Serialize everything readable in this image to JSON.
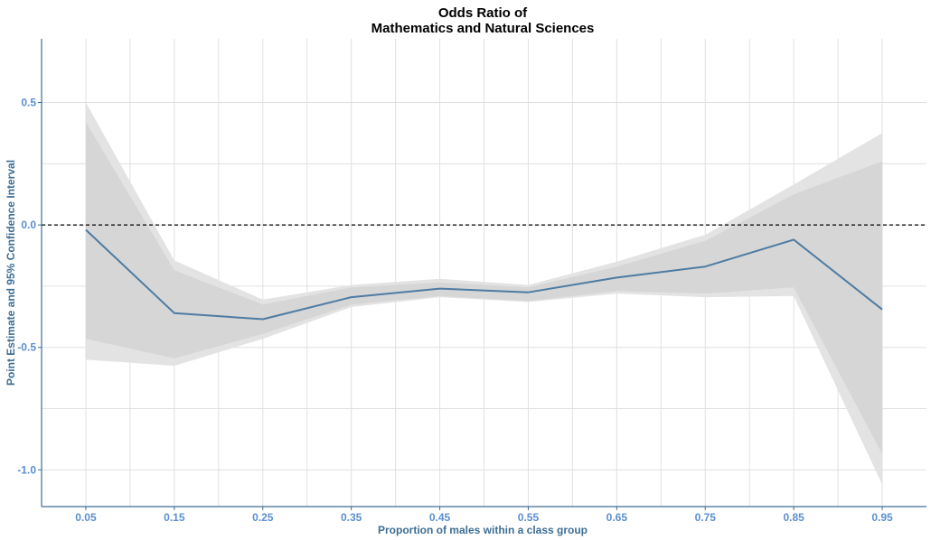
{
  "chart_data": {
    "type": "line",
    "title": [
      "Odds Ratio of",
      "Mathematics and Natural Sciences"
    ],
    "xlabel": "Proportion of males within a class group",
    "ylabel": "Point Estimate and 95% Confidence Interval",
    "xlim": [
      0.0,
      1.0
    ],
    "ylim": [
      -1.15,
      0.76
    ],
    "x_ticks": [
      0.05,
      0.15,
      0.25,
      0.35,
      0.45,
      0.55,
      0.65,
      0.75,
      0.85,
      0.95
    ],
    "x_tick_labels": [
      "0.05",
      "0.15",
      "0.25",
      "0.35",
      "0.45",
      "0.55",
      "0.65",
      "0.75",
      "0.85",
      "0.95"
    ],
    "y_ticks": [
      0.5,
      0.0,
      -0.5,
      -1.0
    ],
    "y_tick_labels": [
      "0.5",
      "0.0",
      "-0.5",
      "-1.0"
    ],
    "grid": true,
    "reference_line": {
      "y": 0.0,
      "style": "dashed",
      "color": "#000000"
    },
    "series": [
      {
        "x": [
          0.05,
          0.15,
          0.25,
          0.35,
          0.45,
          0.55,
          0.65,
          0.75,
          0.85,
          0.95
        ],
        "values": [
          -0.02,
          -0.36,
          -0.385,
          -0.295,
          -0.26,
          -0.275,
          -0.215,
          -0.17,
          -0.06,
          -0.345
        ],
        "color": "#4d7ba3"
      }
    ],
    "bands": [
      {
        "lower": [
          -0.55,
          -0.575,
          -0.465,
          -0.335,
          -0.295,
          -0.315,
          -0.28,
          -0.295,
          -0.29,
          -1.06
        ],
        "upper": [
          0.5,
          -0.145,
          -0.305,
          -0.245,
          -0.22,
          -0.245,
          -0.15,
          -0.04,
          0.165,
          0.375
        ],
        "color": "#e3e3e3"
      },
      {
        "lower": [
          -0.465,
          -0.545,
          -0.445,
          -0.325,
          -0.29,
          -0.31,
          -0.27,
          -0.28,
          -0.255,
          -0.935
        ],
        "upper": [
          0.42,
          -0.185,
          -0.325,
          -0.255,
          -0.235,
          -0.255,
          -0.17,
          -0.065,
          0.125,
          0.26
        ],
        "color": "#d6d6d6"
      }
    ],
    "colors": {
      "axis": "#3e6e94",
      "tick_label": "#5b8fcf",
      "axis_label": "#3e6e94",
      "grid": "#e0e0e0"
    }
  }
}
